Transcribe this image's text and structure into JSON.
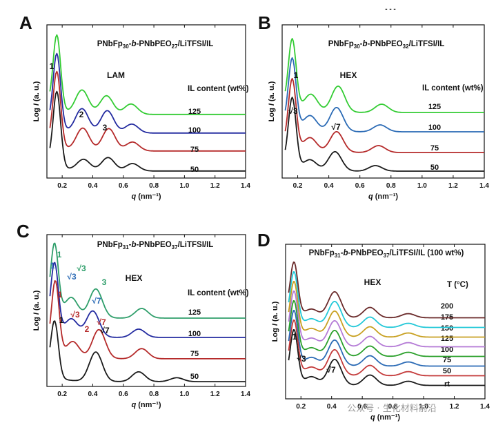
{
  "watermark": "公众号 · 生化材料前沿",
  "header_fragment": "- - -",
  "chart_data": [
    {
      "id": "A",
      "type": "line",
      "letter": "A",
      "title_parts": [
        {
          "t": "PNbFp",
          "sub": false
        },
        {
          "t": "30",
          "sub": true
        },
        {
          "t": "-",
          "sub": false
        },
        {
          "t": "b",
          "sub": false,
          "italic": true
        },
        {
          "t": "-PNbPEO",
          "sub": false
        },
        {
          "t": "27",
          "sub": true
        },
        {
          "t": "/LiTFSI/IL",
          "sub": false
        }
      ],
      "phase": "LAM",
      "legend_title": "IL content (wt%)",
      "xlabel": "q (nm⁻¹)",
      "ylabel": "Log I (a. u.)",
      "xlim": [
        0.1,
        1.4
      ],
      "xticks": [
        "0.2",
        "0.4",
        "0.6",
        "0.8",
        "1.0",
        "1.2",
        "1.4"
      ],
      "series": [
        {
          "name": "50",
          "color": "#1a1a1a",
          "peaks": [
            [
              0.165,
              1.0
            ],
            [
              0.34,
              0.15
            ],
            [
              0.5,
              0.18
            ],
            [
              0.66,
              0.1
            ]
          ]
        },
        {
          "name": "75",
          "color": "#b52a2a",
          "peaks": [
            [
              0.165,
              1.0
            ],
            [
              0.335,
              0.3
            ],
            [
              0.505,
              0.3
            ],
            [
              0.66,
              0.12
            ]
          ]
        },
        {
          "name": "100",
          "color": "#232ba0",
          "peaks": [
            [
              0.165,
              1.0
            ],
            [
              0.33,
              0.32
            ],
            [
              0.495,
              0.3
            ],
            [
              0.655,
              0.12
            ]
          ]
        },
        {
          "name": "125",
          "color": "#33cc33",
          "peaks": [
            [
              0.165,
              1.0
            ],
            [
              0.33,
              0.32
            ],
            [
              0.49,
              0.25
            ],
            [
              0.65,
              0.14
            ]
          ]
        }
      ],
      "annotations": [
        {
          "text": "1",
          "color": "#111"
        },
        {
          "text": "2",
          "color": "#111"
        },
        {
          "text": "3",
          "color": "#111"
        }
      ]
    },
    {
      "id": "B",
      "type": "line",
      "letter": "B",
      "title_parts": [
        {
          "t": "PNbFp",
          "sub": false
        },
        {
          "t": "30",
          "sub": true
        },
        {
          "t": "-",
          "sub": false
        },
        {
          "t": "b",
          "sub": false,
          "italic": true
        },
        {
          "t": "-PNbPEO",
          "sub": false
        },
        {
          "t": "32",
          "sub": true
        },
        {
          "t": "/LiTFSI/IL",
          "sub": false
        }
      ],
      "phase": "HEX",
      "legend_title": "IL content (wt%)",
      "xlabel": "q (nm⁻¹)",
      "ylabel": "Log I (a. u.)",
      "xlim": [
        0.1,
        1.4
      ],
      "xticks": [
        "0.2",
        "0.4",
        "0.6",
        "0.8",
        "1.0",
        "1.2",
        "1.4"
      ],
      "series": [
        {
          "name": "50",
          "color": "#1a1a1a",
          "peaks": [
            [
              0.165,
              1.0
            ],
            [
              0.28,
              0.15
            ],
            [
              0.44,
              0.28
            ],
            [
              0.7,
              0.08
            ]
          ]
        },
        {
          "name": "75",
          "color": "#b52a2a",
          "peaks": [
            [
              0.165,
              1.0
            ],
            [
              0.28,
              0.2
            ],
            [
              0.45,
              0.3
            ],
            [
              0.72,
              0.1
            ]
          ]
        },
        {
          "name": "100",
          "color": "#2a6ab5",
          "peaks": [
            [
              0.165,
              1.0
            ],
            [
              0.28,
              0.22
            ],
            [
              0.45,
              0.35
            ],
            [
              0.73,
              0.1
            ]
          ]
        },
        {
          "name": "125",
          "color": "#33cc33",
          "peaks": [
            [
              0.165,
              1.0
            ],
            [
              0.285,
              0.25
            ],
            [
              0.46,
              0.38
            ],
            [
              0.74,
              0.12
            ]
          ]
        }
      ],
      "annotations": [
        {
          "text": "1",
          "color": "#111"
        },
        {
          "text": "√3",
          "color": "#111"
        },
        {
          "text": "√7",
          "color": "#111"
        }
      ]
    },
    {
      "id": "C",
      "type": "line",
      "letter": "C",
      "title_parts": [
        {
          "t": "PNbFp",
          "sub": false
        },
        {
          "t": "31",
          "sub": true
        },
        {
          "t": "-",
          "sub": false
        },
        {
          "t": "b",
          "sub": false,
          "italic": true
        },
        {
          "t": "-PNbPEO",
          "sub": false
        },
        {
          "t": "37",
          "sub": true
        },
        {
          "t": "/LiTFSI/IL",
          "sub": false
        }
      ],
      "phase": "HEX",
      "legend_title": "IL content (wt%)",
      "xlabel": "q (nm⁻¹)",
      "ylabel": "Log I (a. u.)",
      "xlim": [
        0.1,
        1.4
      ],
      "xticks": [
        "0.2",
        "0.4",
        "0.6",
        "0.8",
        "1.0",
        "1.2",
        "1.4"
      ],
      "series": [
        {
          "name": "50",
          "color": "#1a1a1a",
          "peaks": [
            [
              0.15,
              0.85
            ],
            [
              0.42,
              0.45
            ],
            [
              0.7,
              0.15
            ],
            [
              0.95,
              0.06
            ]
          ]
        },
        {
          "name": "75",
          "color": "#b52a2a",
          "peaks": [
            [
              0.155,
              1.0
            ],
            [
              0.27,
              0.22
            ],
            [
              0.44,
              0.4
            ],
            [
              0.72,
              0.14
            ]
          ]
        },
        {
          "name": "100",
          "color": "#232ba0",
          "peaks": [
            [
              0.15,
              1.0
            ],
            [
              0.26,
              0.25
            ],
            [
              0.4,
              0.38
            ],
            [
              0.7,
              0.12
            ]
          ]
        },
        {
          "name": "125",
          "color": "#2e9e6a",
          "peaks": [
            [
              0.15,
              1.0
            ],
            [
              0.26,
              0.28
            ],
            [
              0.42,
              0.42
            ],
            [
              0.72,
              0.14
            ]
          ]
        }
      ],
      "annotations": [
        {
          "text": "1",
          "color": "#2e9e6a"
        },
        {
          "text": "√3",
          "color": "#2e9e6a"
        },
        {
          "text": "3",
          "color": "#2e9e6a"
        },
        {
          "text": "1",
          "color": "#2a6ab5"
        },
        {
          "text": "√3",
          "color": "#2a6ab5"
        },
        {
          "text": "√7",
          "color": "#2a6ab5"
        },
        {
          "text": "1",
          "color": "#b52a2a"
        },
        {
          "text": "√3",
          "color": "#b52a2a"
        },
        {
          "text": "2",
          "color": "#b52a2a"
        },
        {
          "text": "√7",
          "color": "#b52a2a"
        },
        {
          "text": "1",
          "color": "#111"
        },
        {
          "text": "√7",
          "color": "#111"
        }
      ]
    },
    {
      "id": "D",
      "type": "line",
      "letter": "D",
      "title_parts": [
        {
          "t": "PNbFp",
          "sub": false
        },
        {
          "t": "31",
          "sub": true
        },
        {
          "t": "-",
          "sub": false
        },
        {
          "t": "b",
          "sub": false,
          "italic": true
        },
        {
          "t": "-PNbPEO",
          "sub": false
        },
        {
          "t": "37",
          "sub": true
        },
        {
          "t": "/LiTFSI/IL (100 wt%)",
          "sub": false
        }
      ],
      "phase": "HEX",
      "legend_title": "T (°C)",
      "xlabel": "q (nm⁻¹)",
      "ylabel": "Log I (a. u.)",
      "xlim": [
        0.1,
        1.4
      ],
      "xticks": [
        "0.2",
        "0.4",
        "0.6",
        "0.8",
        "1.0",
        "1.2",
        "1.4"
      ],
      "series": [
        {
          "name": "rt",
          "color": "#1a1a1a",
          "peaks": [
            [
              0.155,
              1.0
            ],
            [
              0.27,
              0.15
            ],
            [
              0.42,
              0.5
            ],
            [
              0.65,
              0.2
            ],
            [
              0.9,
              0.08
            ]
          ]
        },
        {
          "name": "50",
          "color": "#c43a3a",
          "peaks": [
            [
              0.155,
              1.0
            ],
            [
              0.27,
              0.15
            ],
            [
              0.42,
              0.5
            ],
            [
              0.65,
              0.2
            ],
            [
              0.9,
              0.08
            ]
          ]
        },
        {
          "name": "75",
          "color": "#2a6ab5",
          "peaks": [
            [
              0.155,
              1.0
            ],
            [
              0.27,
              0.15
            ],
            [
              0.42,
              0.5
            ],
            [
              0.65,
              0.2
            ],
            [
              0.9,
              0.08
            ]
          ]
        },
        {
          "name": "100",
          "color": "#2aa02a",
          "peaks": [
            [
              0.155,
              1.0
            ],
            [
              0.27,
              0.15
            ],
            [
              0.42,
              0.5
            ],
            [
              0.65,
              0.2
            ],
            [
              0.9,
              0.08
            ]
          ]
        },
        {
          "name": "125",
          "color": "#b47ad6",
          "peaks": [
            [
              0.155,
              1.0
            ],
            [
              0.27,
              0.15
            ],
            [
              0.42,
              0.5
            ],
            [
              0.65,
              0.2
            ],
            [
              0.9,
              0.08
            ]
          ]
        },
        {
          "name": "150",
          "color": "#c8a020",
          "peaks": [
            [
              0.155,
              1.0
            ],
            [
              0.27,
              0.15
            ],
            [
              0.42,
              0.5
            ],
            [
              0.65,
              0.2
            ],
            [
              0.9,
              0.08
            ]
          ]
        },
        {
          "name": "175",
          "color": "#22c8d8",
          "peaks": [
            [
              0.155,
              1.0
            ],
            [
              0.27,
              0.15
            ],
            [
              0.42,
              0.5
            ],
            [
              0.65,
              0.2
            ],
            [
              0.9,
              0.08
            ]
          ]
        },
        {
          "name": "200",
          "color": "#6a2a2a",
          "peaks": [
            [
              0.155,
              1.0
            ],
            [
              0.27,
              0.15
            ],
            [
              0.42,
              0.5
            ],
            [
              0.65,
              0.2
            ],
            [
              0.9,
              0.08
            ]
          ]
        }
      ],
      "annotations": [
        {
          "text": "1",
          "color": "#111"
        },
        {
          "text": "√3",
          "color": "#111"
        },
        {
          "text": "√7",
          "color": "#111"
        }
      ]
    }
  ]
}
